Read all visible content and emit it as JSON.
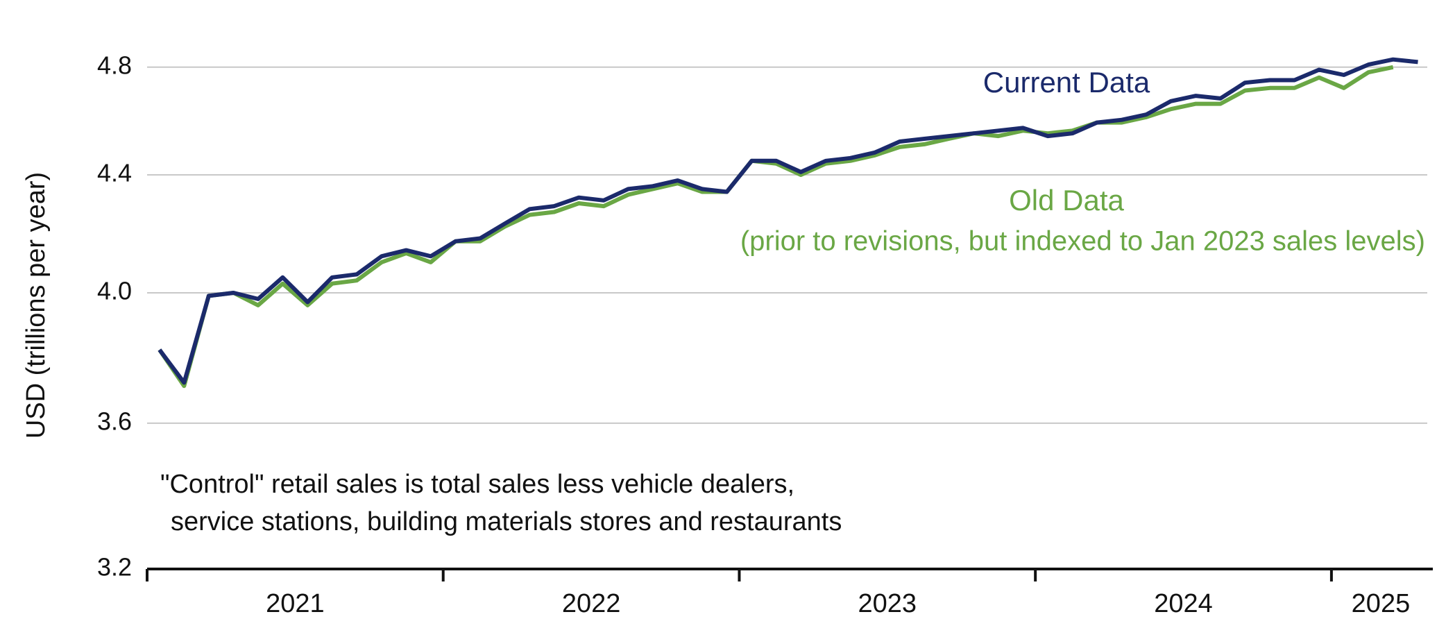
{
  "chart_data": {
    "type": "line",
    "y_label": "USD (trillions per year)",
    "annotations": [
      "Current Data",
      "Old Data",
      "(prior to revisions, but indexed to Jan 2023 sales levels)",
      "\"Control\" retail sales is total sales less vehicle dealers,",
      "service stations, building materials stores and restaurants"
    ],
    "log_scale": true,
    "grid": true,
    "xlim": [
      2021,
      2025.333
    ],
    "xticks": [
      2021,
      2022,
      2023,
      2024,
      2025
    ],
    "ylim": [
      3.2,
      4.9
    ],
    "yticks": [
      {
        "value": 3.2,
        "label": "3.2"
      },
      3.6,
      {
        "value": 4.0,
        "label": "4.0"
      },
      4.4,
      4.8
    ],
    "x": [
      2021.042,
      2021.125,
      2021.208,
      2021.292,
      2021.375,
      2021.458,
      2021.542,
      2021.625,
      2021.708,
      2021.792,
      2021.875,
      2021.958,
      2022.042,
      2022.125,
      2022.208,
      2022.292,
      2022.375,
      2022.458,
      2022.542,
      2022.625,
      2022.708,
      2022.792,
      2022.875,
      2022.958,
      2023.042,
      2023.125,
      2023.208,
      2023.292,
      2023.375,
      2023.458,
      2023.542,
      2023.625,
      2023.708,
      2023.792,
      2023.875,
      2023.958,
      2024.042,
      2024.125,
      2024.208,
      2024.292,
      2024.375,
      2024.458,
      2024.542,
      2024.625,
      2024.708,
      2024.792,
      2024.875,
      2024.958,
      2025.042,
      2025.125,
      2025.208,
      2025.292
    ],
    "series": [
      {
        "name": "Current Data",
        "color": "#1b2a6b",
        "values": [
          3.82,
          3.72,
          3.99,
          4.0,
          3.98,
          4.05,
          3.97,
          4.05,
          4.06,
          4.12,
          4.14,
          4.12,
          4.17,
          4.18,
          4.23,
          4.28,
          4.29,
          4.32,
          4.31,
          4.35,
          4.36,
          4.38,
          4.35,
          4.34,
          4.45,
          4.45,
          4.41,
          4.45,
          4.46,
          4.48,
          4.52,
          4.53,
          4.54,
          4.55,
          4.56,
          4.57,
          4.54,
          4.55,
          4.59,
          4.6,
          4.62,
          4.67,
          4.69,
          4.68,
          4.74,
          4.75,
          4.75,
          4.79,
          4.77,
          4.81,
          4.83,
          4.82
        ]
      },
      {
        "name": "Old Data",
        "color": "#6aa745",
        "values": [
          3.82,
          3.71,
          3.99,
          4.0,
          3.96,
          4.03,
          3.96,
          4.03,
          4.04,
          4.1,
          4.13,
          4.1,
          4.17,
          4.17,
          4.22,
          4.26,
          4.27,
          4.3,
          4.29,
          4.33,
          4.35,
          4.37,
          4.34,
          4.34,
          4.45,
          4.44,
          4.4,
          4.44,
          4.45,
          4.47,
          4.5,
          4.51,
          4.53,
          4.55,
          4.54,
          4.56,
          4.55,
          4.56,
          4.59,
          4.59,
          4.61,
          4.64,
          4.66,
          4.66,
          4.71,
          4.72,
          4.72,
          4.76,
          4.72,
          4.78,
          4.8,
          null
        ]
      }
    ]
  }
}
